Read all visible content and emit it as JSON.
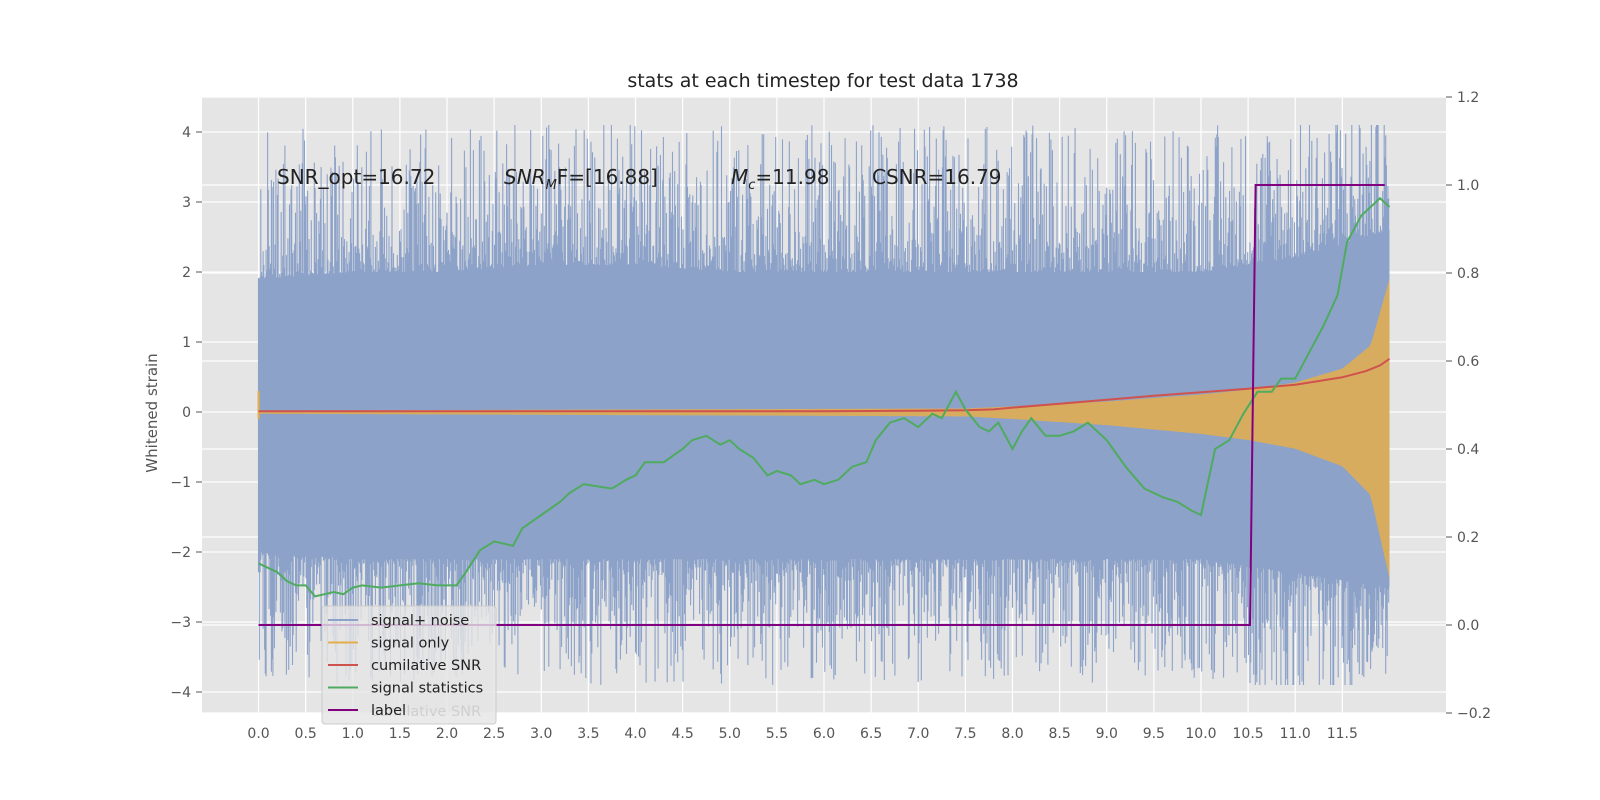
{
  "chart_data": {
    "type": "line",
    "title": "stats at each timestep for test data 1738",
    "ylabel": "Whitened strain",
    "xlabel": "",
    "xlim": [
      -0.6,
      12.6
    ],
    "ylim": [
      -4.3,
      4.5
    ],
    "y2lim": [
      -0.2,
      1.2
    ],
    "grid": true,
    "legend_position": "lower-left",
    "x_ticks": [
      "0.0",
      "0.5",
      "1.0",
      "1.5",
      "2.0",
      "2.5",
      "3.0",
      "3.5",
      "4.0",
      "4.5",
      "5.0",
      "5.5",
      "6.0",
      "6.5",
      "7.0",
      "7.5",
      "8.0",
      "8.5",
      "9.0",
      "9.5",
      "10.0",
      "10.5",
      "11.0",
      "11.5"
    ],
    "y_ticks": [
      "4",
      "3",
      "2",
      "1",
      "0",
      "−1",
      "−2",
      "−3",
      "−4"
    ],
    "y2_ticks": [
      "1.2",
      "1.0",
      "0.8",
      "0.6",
      "0.4",
      "0.2",
      "0.0",
      "−0.2"
    ],
    "annotations": {
      "snr_opt": "SNR_opt=16.72",
      "snr_mf_base": "SNR",
      "snr_mf_sub": "M",
      "snr_mf_rest": "F=[16.88]",
      "mc_base": "M",
      "mc_sub": "c",
      "mc_rest": "=11.98",
      "csnr": "CSNR=16.79"
    },
    "legend_entries": [
      "signal+ noise",
      "signal only",
      "cumilative SNR",
      "signal statistics",
      "label"
    ],
    "legend_hidden_text": "cumilative SNR",
    "series": [
      {
        "name": "signal+ noise",
        "color": "#8da2c8",
        "axis": "left",
        "x_range": [
          0,
          12
        ],
        "envelope_upper": [
          [
            0,
            1.9
          ],
          [
            1,
            2.0
          ],
          [
            2,
            2.0
          ],
          [
            3,
            2.1
          ],
          [
            4,
            2.1
          ],
          [
            5,
            2.0
          ],
          [
            6,
            2.0
          ],
          [
            7,
            2.0
          ],
          [
            8,
            2.0
          ],
          [
            9,
            2.0
          ],
          [
            10,
            2.0
          ],
          [
            10.5,
            2.1
          ],
          [
            11,
            2.2
          ],
          [
            11.5,
            2.4
          ],
          [
            12,
            2.6
          ]
        ],
        "envelope_lower": [
          [
            0,
            -2.0
          ],
          [
            1,
            -2.1
          ],
          [
            2,
            -2.1
          ],
          [
            3,
            -2.1
          ],
          [
            4,
            -2.1
          ],
          [
            5,
            -2.1
          ],
          [
            6,
            -2.1
          ],
          [
            7,
            -2.1
          ],
          [
            8,
            -2.1
          ],
          [
            9,
            -2.1
          ],
          [
            10,
            -2.1
          ],
          [
            10.5,
            -2.2
          ],
          [
            11,
            -2.3
          ],
          [
            11.5,
            -2.4
          ],
          [
            12,
            -2.5
          ]
        ],
        "spike_max": 4.1,
        "spike_min": -3.9
      },
      {
        "name": "signal only",
        "color": "#e5ae4b",
        "axis": "left",
        "amplitude": [
          [
            0,
            0.02
          ],
          [
            7.5,
            0.05
          ],
          [
            8.0,
            0.08
          ],
          [
            9.0,
            0.15
          ],
          [
            10.0,
            0.25
          ],
          [
            10.5,
            0.32
          ],
          [
            11.0,
            0.42
          ],
          [
            11.5,
            0.62
          ],
          [
            11.8,
            0.95
          ],
          [
            12,
            1.9
          ]
        ]
      },
      {
        "name": "cumilative SNR",
        "color": "#d0524d",
        "axis": "right",
        "points": [
          [
            0,
            0.486
          ],
          [
            6.0,
            0.486
          ],
          [
            7.0,
            0.487
          ],
          [
            7.5,
            0.488
          ],
          [
            7.8,
            0.49
          ],
          [
            8.0,
            0.494
          ],
          [
            8.5,
            0.503
          ],
          [
            9.0,
            0.512
          ],
          [
            9.5,
            0.521
          ],
          [
            10.0,
            0.529
          ],
          [
            10.5,
            0.537
          ],
          [
            11.0,
            0.546
          ],
          [
            11.5,
            0.563
          ],
          [
            11.75,
            0.577
          ],
          [
            11.9,
            0.59
          ],
          [
            12.0,
            0.605
          ]
        ]
      },
      {
        "name": "signal statistics",
        "color": "#4eab5f",
        "axis": "right",
        "points": [
          [
            0,
            0.14
          ],
          [
            0.1,
            0.13
          ],
          [
            0.2,
            0.12
          ],
          [
            0.3,
            0.1
          ],
          [
            0.4,
            0.09
          ],
          [
            0.5,
            0.09
          ],
          [
            0.6,
            0.065
          ],
          [
            0.7,
            0.07
          ],
          [
            0.8,
            0.075
          ],
          [
            0.9,
            0.07
          ],
          [
            1.0,
            0.085
          ],
          [
            1.1,
            0.09
          ],
          [
            1.3,
            0.085
          ],
          [
            1.5,
            0.09
          ],
          [
            1.7,
            0.095
          ],
          [
            1.9,
            0.09
          ],
          [
            2.1,
            0.09
          ],
          [
            2.2,
            0.12
          ],
          [
            2.35,
            0.17
          ],
          [
            2.5,
            0.19
          ],
          [
            2.7,
            0.18
          ],
          [
            2.8,
            0.22
          ],
          [
            3.0,
            0.25
          ],
          [
            3.2,
            0.28
          ],
          [
            3.3,
            0.3
          ],
          [
            3.45,
            0.32
          ],
          [
            3.6,
            0.315
          ],
          [
            3.75,
            0.31
          ],
          [
            3.9,
            0.33
          ],
          [
            4.0,
            0.34
          ],
          [
            4.1,
            0.37
          ],
          [
            4.3,
            0.37
          ],
          [
            4.5,
            0.4
          ],
          [
            4.6,
            0.42
          ],
          [
            4.75,
            0.43
          ],
          [
            4.9,
            0.41
          ],
          [
            5.0,
            0.42
          ],
          [
            5.1,
            0.4
          ],
          [
            5.25,
            0.38
          ],
          [
            5.4,
            0.34
          ],
          [
            5.5,
            0.35
          ],
          [
            5.65,
            0.34
          ],
          [
            5.75,
            0.32
          ],
          [
            5.9,
            0.33
          ],
          [
            6.0,
            0.32
          ],
          [
            6.15,
            0.33
          ],
          [
            6.3,
            0.36
          ],
          [
            6.45,
            0.37
          ],
          [
            6.55,
            0.42
          ],
          [
            6.7,
            0.46
          ],
          [
            6.85,
            0.47
          ],
          [
            7.0,
            0.45
          ],
          [
            7.15,
            0.48
          ],
          [
            7.25,
            0.47
          ],
          [
            7.4,
            0.53
          ],
          [
            7.5,
            0.49
          ],
          [
            7.65,
            0.45
          ],
          [
            7.75,
            0.44
          ],
          [
            7.85,
            0.46
          ],
          [
            8.0,
            0.4
          ],
          [
            8.1,
            0.44
          ],
          [
            8.2,
            0.47
          ],
          [
            8.35,
            0.43
          ],
          [
            8.5,
            0.43
          ],
          [
            8.65,
            0.44
          ],
          [
            8.8,
            0.46
          ],
          [
            9.0,
            0.42
          ],
          [
            9.2,
            0.36
          ],
          [
            9.4,
            0.31
          ],
          [
            9.6,
            0.29
          ],
          [
            9.75,
            0.28
          ],
          [
            9.9,
            0.26
          ],
          [
            10.0,
            0.25
          ],
          [
            10.15,
            0.4
          ],
          [
            10.3,
            0.42
          ],
          [
            10.45,
            0.48
          ],
          [
            10.6,
            0.53
          ],
          [
            10.75,
            0.53
          ],
          [
            10.85,
            0.56
          ],
          [
            11.0,
            0.56
          ],
          [
            11.15,
            0.62
          ],
          [
            11.3,
            0.68
          ],
          [
            11.45,
            0.75
          ],
          [
            11.55,
            0.87
          ],
          [
            11.7,
            0.93
          ],
          [
            11.8,
            0.95
          ],
          [
            11.9,
            0.97
          ],
          [
            12.0,
            0.95
          ]
        ]
      },
      {
        "name": "label",
        "color": "#800080",
        "axis": "right",
        "points": [
          [
            0,
            0.0
          ],
          [
            10.52,
            0.0
          ],
          [
            10.58,
            1.0
          ],
          [
            11.95,
            1.0
          ]
        ]
      }
    ]
  }
}
